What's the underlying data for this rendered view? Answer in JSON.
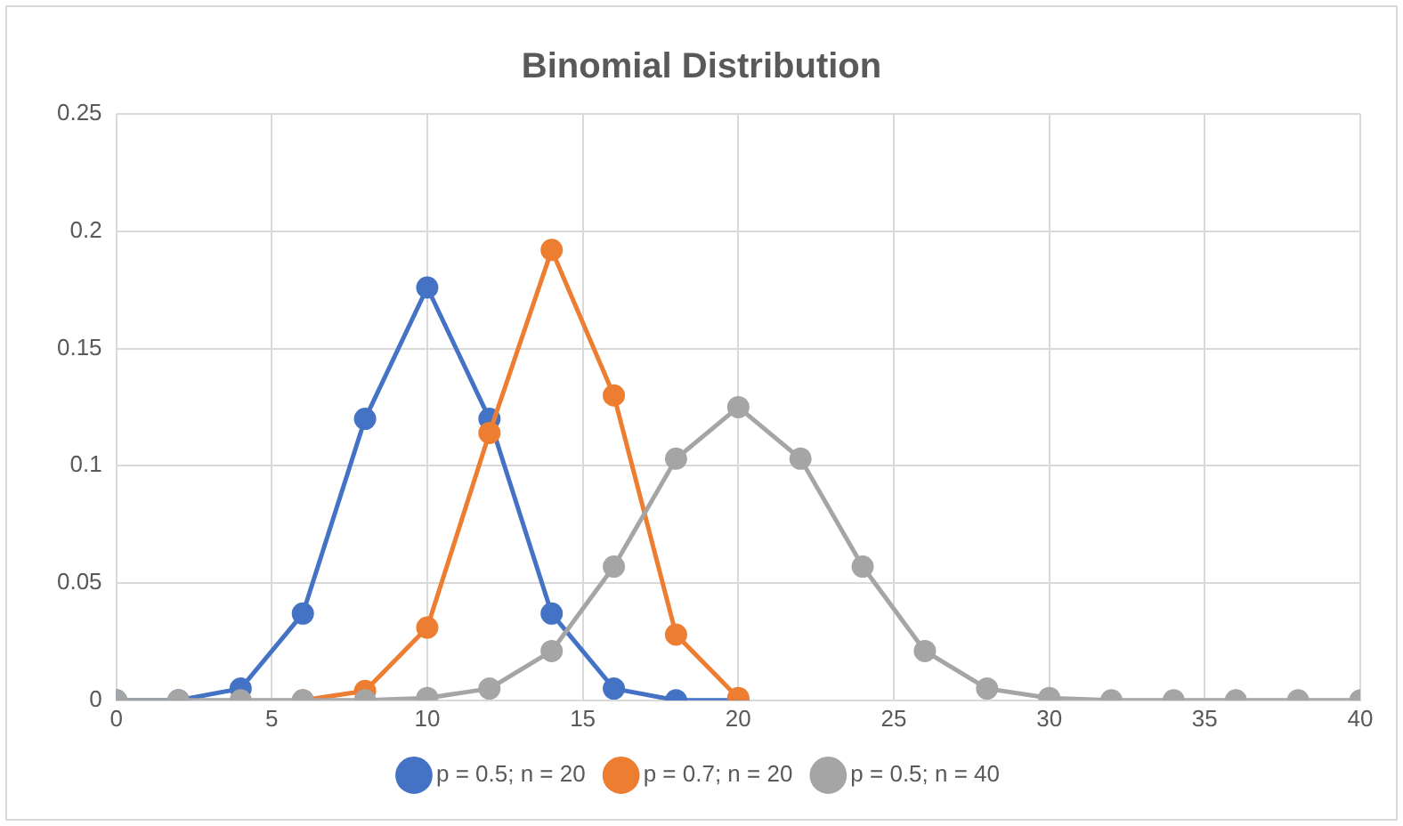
{
  "chart_data": {
    "type": "line",
    "title": "Binomial Distribution",
    "marker": "circle",
    "grid": true,
    "legend": "bottom",
    "xlim": [
      0,
      40
    ],
    "xticks": [
      0,
      5,
      10,
      15,
      20,
      25,
      30,
      35,
      40
    ],
    "ylim": [
      0,
      0.25
    ],
    "yticks": [
      0,
      0.05,
      0.1,
      0.15,
      0.2,
      0.25
    ],
    "series": [
      {
        "name": "p = 0.5; n = 20",
        "color": "#4472c4",
        "x": [
          0,
          2,
          4,
          6,
          8,
          10,
          12,
          14,
          16,
          18,
          20
        ],
        "values": [
          0,
          0,
          0.005,
          0.037,
          0.12,
          0.176,
          0.12,
          0.037,
          0.005,
          0,
          0
        ]
      },
      {
        "name": "p = 0.7; n = 20",
        "color": "#ed7d31",
        "x": [
          6,
          8,
          10,
          12,
          14,
          16,
          18,
          20
        ],
        "values": [
          0,
          0.004,
          0.031,
          0.114,
          0.192,
          0.13,
          0.028,
          0.001
        ]
      },
      {
        "name": "p = 0.5; n = 40",
        "color": "#a5a5a5",
        "x": [
          0,
          2,
          4,
          6,
          8,
          10,
          12,
          14,
          16,
          18,
          20,
          22,
          24,
          26,
          28,
          30,
          32,
          34,
          36,
          38,
          40
        ],
        "values": [
          0,
          0,
          0,
          0,
          0,
          0.001,
          0.005,
          0.021,
          0.057,
          0.103,
          0.125,
          0.103,
          0.057,
          0.021,
          0.005,
          0.001,
          0,
          0,
          0,
          0,
          0
        ]
      }
    ]
  }
}
